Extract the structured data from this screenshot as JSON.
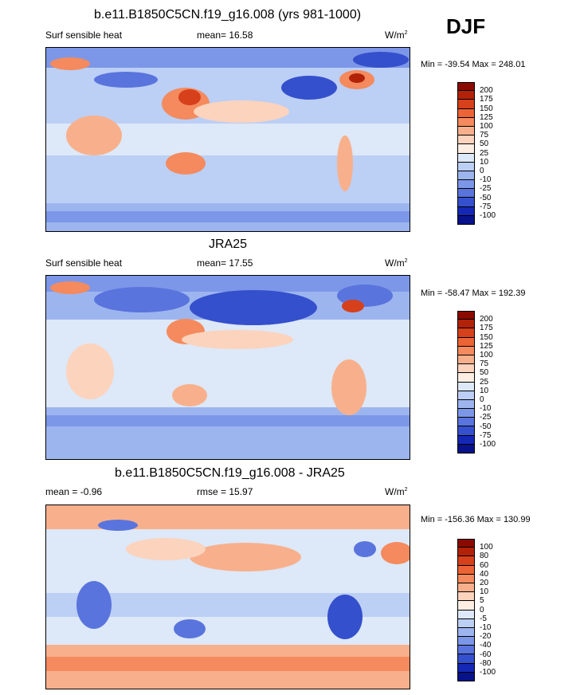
{
  "season": "DJF",
  "panels": [
    {
      "title": "b.e11.B1850C5CN.f19_g16.008 (yrs 981-1000)",
      "left_label": "Surf sensible heat",
      "center_label": "mean=  16.58",
      "unit_main": "W/m",
      "unit_sup": "2",
      "minmax": "Min = -39.54 Max = 248.01",
      "colorbar": {
        "labels": [
          "200",
          "175",
          "150",
          "125",
          "100",
          "75",
          "50",
          "25",
          "10",
          "0",
          "-10",
          "-25",
          "-50",
          "-75",
          "-100"
        ],
        "colors": [
          "#8b0a00",
          "#b22208",
          "#d6401b",
          "#ec6436",
          "#f48a5d",
          "#f8b08c",
          "#fcd3bd",
          "#fdeee3",
          "#dde8f8",
          "#bccff5",
          "#9db5ef",
          "#7c97e8",
          "#5a74dd",
          "#3550cc",
          "#1528b5",
          "#08128a"
        ]
      }
    },
    {
      "title": "JRA25",
      "left_label": "Surf sensible heat",
      "center_label": "mean=  17.55",
      "unit_main": "W/m",
      "unit_sup": "2",
      "minmax": "Min = -58.47 Max = 192.39",
      "colorbar": {
        "labels": [
          "200",
          "175",
          "150",
          "125",
          "100",
          "75",
          "50",
          "25",
          "10",
          "0",
          "-10",
          "-25",
          "-50",
          "-75",
          "-100"
        ],
        "colors": [
          "#8b0a00",
          "#b22208",
          "#d6401b",
          "#ec6436",
          "#f48a5d",
          "#f8b08c",
          "#fcd3bd",
          "#fdeee3",
          "#dde8f8",
          "#bccff5",
          "#9db5ef",
          "#7c97e8",
          "#5a74dd",
          "#3550cc",
          "#1528b5",
          "#08128a"
        ]
      }
    },
    {
      "title": "b.e11.B1850C5CN.f19_g16.008 - JRA25",
      "left_label": "mean =  -0.96",
      "center_label": "rmse =  15.97",
      "unit_main": "W/m",
      "unit_sup": "2",
      "minmax": "Min = -156.36 Max = 130.99",
      "colorbar": {
        "labels": [
          "100",
          "80",
          "60",
          "40",
          "20",
          "10",
          "5",
          "0",
          "-5",
          "-10",
          "-20",
          "-40",
          "-60",
          "-80",
          "-100"
        ],
        "colors": [
          "#8b0a00",
          "#b22208",
          "#d6401b",
          "#ec6436",
          "#f48a5d",
          "#f8b08c",
          "#fcd3bd",
          "#fdeee3",
          "#dde8f8",
          "#bccff5",
          "#9db5ef",
          "#7c97e8",
          "#5a74dd",
          "#3550cc",
          "#1528b5",
          "#08128a"
        ]
      }
    }
  ]
}
